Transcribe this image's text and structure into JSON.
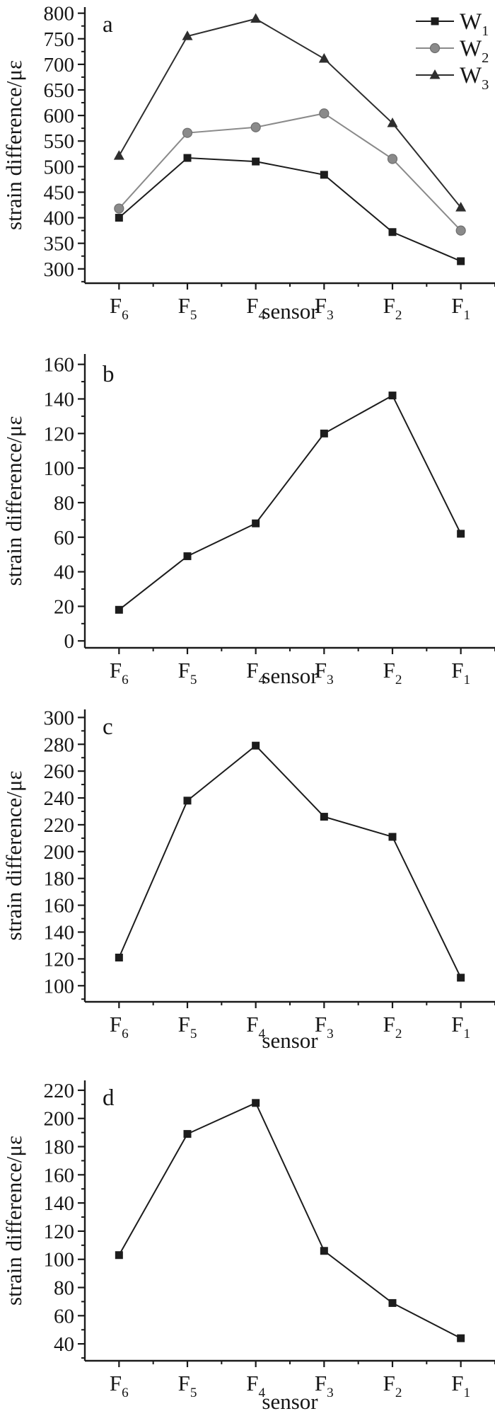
{
  "figure": {
    "background": "#ffffff",
    "text_color": "#161616",
    "axis_color": "#1a1a1a"
  },
  "chart_data": [
    {
      "id": "a",
      "type": "line",
      "panel_label": "a",
      "xlabel": "sensor",
      "ylabel": "strain difference/με",
      "categories": [
        "F_6",
        "F_5",
        "F_4",
        "F_3",
        "F_2",
        "F_1"
      ],
      "ylim": [
        272,
        812
      ],
      "yticks": [
        300,
        350,
        400,
        450,
        500,
        550,
        600,
        650,
        700,
        750,
        800
      ],
      "grid": false,
      "legend": {
        "show": true,
        "position": "top-right",
        "entries": [
          "W_1",
          "W_2",
          "W_3"
        ]
      },
      "series": [
        {
          "name": "W_1",
          "marker": "square",
          "color": "#1c1c1c",
          "values": [
            400,
            517,
            510,
            484,
            372,
            315
          ]
        },
        {
          "name": "W_2",
          "marker": "circle",
          "color": "#8a8a8a",
          "values": [
            418,
            566,
            577,
            604,
            515,
            375
          ]
        },
        {
          "name": "W_3",
          "marker": "triangle",
          "color": "#2e2e2e",
          "values": [
            521,
            755,
            789,
            711,
            585,
            420
          ]
        }
      ]
    },
    {
      "id": "b",
      "type": "line",
      "panel_label": "b",
      "xlabel": "sensor",
      "ylabel": "strain difference/με",
      "categories": [
        "F_6",
        "F_5",
        "F_4",
        "F_3",
        "F_2",
        "F_1"
      ],
      "ylim": [
        -4,
        166
      ],
      "yticks": [
        0,
        20,
        40,
        60,
        80,
        100,
        120,
        140,
        160
      ],
      "grid": false,
      "legend": {
        "show": false
      },
      "series": [
        {
          "name": "",
          "marker": "square",
          "color": "#1c1c1c",
          "values": [
            18,
            49,
            68,
            120,
            142,
            62
          ]
        }
      ]
    },
    {
      "id": "c",
      "type": "line",
      "panel_label": "c",
      "xlabel": "sensor",
      "ylabel": "strain difference/με",
      "categories": [
        "F_6",
        "F_5",
        "F_4",
        "F_3",
        "F_2",
        "F_1"
      ],
      "ylim": [
        88,
        306
      ],
      "yticks": [
        100,
        120,
        140,
        160,
        180,
        200,
        220,
        240,
        260,
        280,
        300
      ],
      "grid": false,
      "legend": {
        "show": false
      },
      "series": [
        {
          "name": "",
          "marker": "square",
          "color": "#1c1c1c",
          "values": [
            121,
            238,
            279,
            226,
            211,
            106
          ]
        }
      ]
    },
    {
      "id": "d",
      "type": "line",
      "panel_label": "d",
      "xlabel": "sensor",
      "ylabel": "strain difference/με",
      "categories": [
        "F_6",
        "F_5",
        "F_4",
        "F_3",
        "F_2",
        "F_1"
      ],
      "ylim": [
        28,
        227
      ],
      "yticks": [
        40,
        60,
        80,
        100,
        120,
        140,
        160,
        180,
        200,
        220
      ],
      "grid": false,
      "legend": {
        "show": false
      },
      "series": [
        {
          "name": "",
          "marker": "square",
          "color": "#1c1c1c",
          "values": [
            103,
            189,
            211,
            106,
            69,
            44
          ]
        }
      ]
    }
  ]
}
